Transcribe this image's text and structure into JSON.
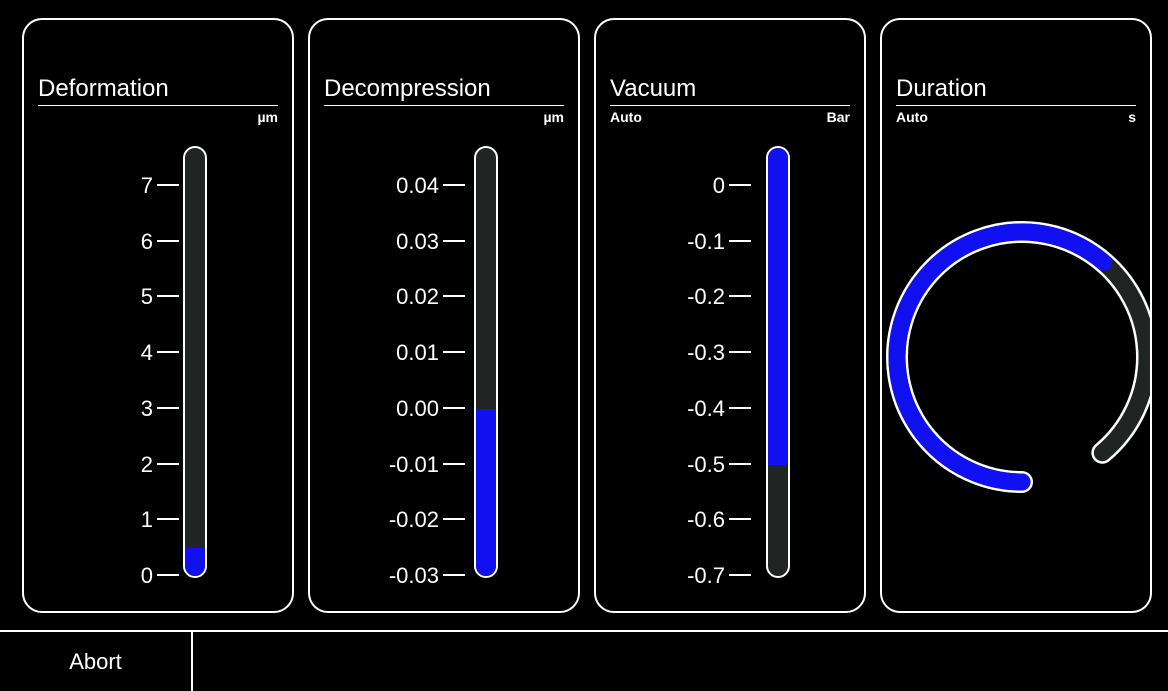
{
  "panels": {
    "deformation": {
      "title": "Deformation",
      "sub_left": "",
      "unit": "µm",
      "ticks": [
        "7",
        "6",
        "5",
        "4",
        "3",
        "2",
        "1",
        "0"
      ],
      "min": 0,
      "max": 7,
      "value": 0.5
    },
    "decompression": {
      "title": "Decompression",
      "sub_left": "",
      "unit": "µm",
      "ticks": [
        "0.04",
        "0.03",
        "0.02",
        "0.01",
        "0.00",
        "-0.01",
        "-0.02",
        "-0.03"
      ],
      "min": -0.03,
      "max": 0.04,
      "value": 0.0
    },
    "vacuum": {
      "title": "Vacuum",
      "sub_left": "Auto",
      "unit": "Bar",
      "ticks": [
        "0",
        "-0.1",
        "-0.2",
        "-0.3",
        "-0.4",
        "-0.5",
        "-0.6",
        "-0.7"
      ],
      "min": -0.7,
      "max": 0,
      "value": -0.5,
      "fill_from": "top"
    },
    "duration": {
      "title": "Duration",
      "sub_left": "Auto",
      "unit": "s",
      "progress": 0.69
    }
  },
  "colors": {
    "fill": "#1010f0",
    "track": "#202422",
    "frame": "#ffffff",
    "background": "#000000"
  },
  "bottom_bar": {
    "abort_label": "Abort"
  }
}
